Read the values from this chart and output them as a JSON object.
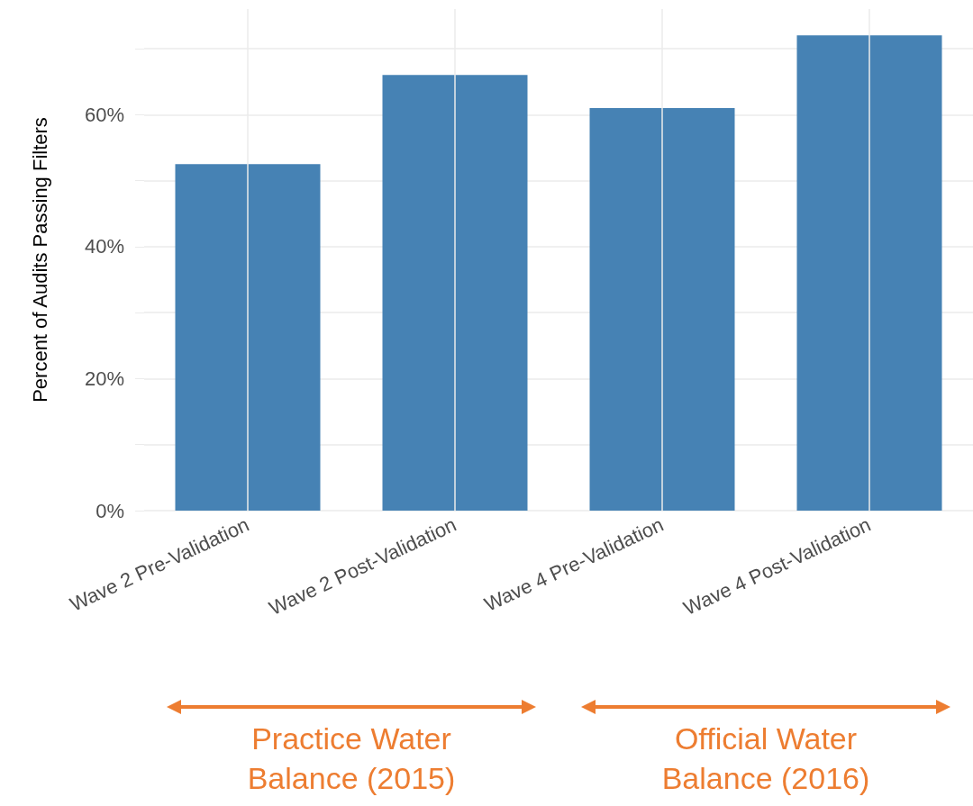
{
  "chart_data": {
    "type": "bar",
    "ylabel": "Percent of Audits Passing Filters",
    "categories": [
      "Wave 2 Pre-Validation",
      "Wave 2 Post-Validation",
      "Wave 4 Pre-Validation",
      "Wave 4 Post-Validation"
    ],
    "values": [
      52.5,
      66,
      61,
      72
    ],
    "color": "#4682b4",
    "ylim": [
      0,
      76
    ],
    "yticks": [
      {
        "value": 0,
        "label": "0%"
      },
      {
        "value": 10,
        "label": null
      },
      {
        "value": 20,
        "label": "20%"
      },
      {
        "value": 30,
        "label": null
      },
      {
        "value": 40,
        "label": "40%"
      },
      {
        "value": 50,
        "label": null
      },
      {
        "value": 60,
        "label": "60%"
      },
      {
        "value": 70,
        "label": null
      }
    ],
    "grid": true,
    "annotations": [
      "Practice Water Balance (2015)",
      "Official Water Balance (2016)"
    ]
  }
}
